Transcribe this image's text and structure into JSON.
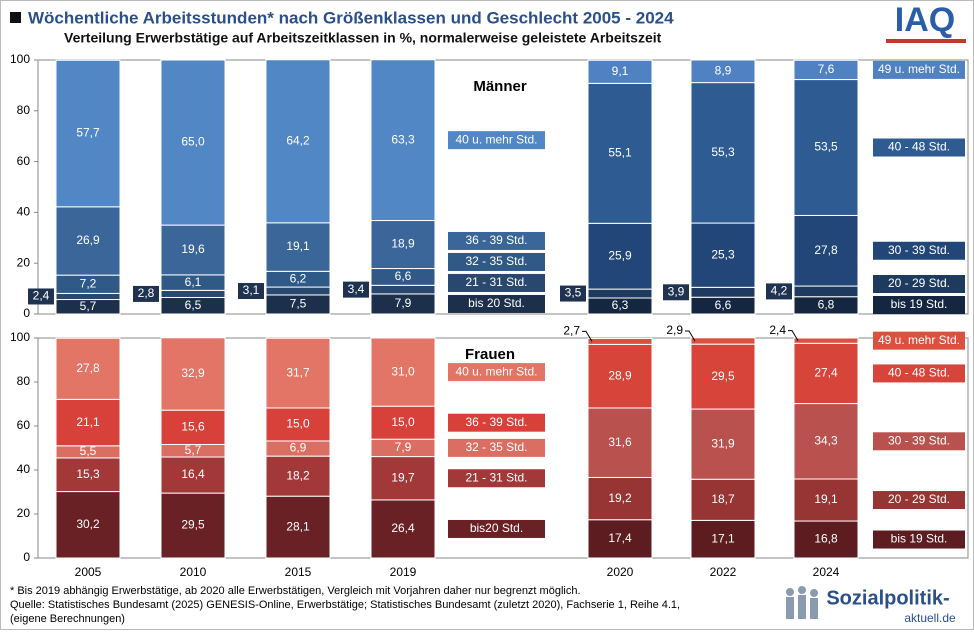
{
  "chart_data": {
    "type": "stacked_bar",
    "title": "Wöchentliche Arbeitsstunden* nach Größenklassen und Geschlecht 2005 - 2024",
    "subtitle": "Verteilung Erwerbstätige auf Arbeitszeitklassen in %, normalerweise geleistete Arbeitszeit",
    "categories": [
      "2005",
      "2010",
      "2015",
      "2019",
      "2020",
      "2022",
      "2024"
    ],
    "panels": [
      {
        "label": "Männer",
        "ylim": [
          0,
          100
        ],
        "yticks": [
          0,
          20,
          40,
          60,
          80,
          100
        ],
        "series": [
          {
            "name": "bis 20 Std.",
            "color": "#1c2f4b",
            "values": [
              5.7,
              6.5,
              7.5,
              7.9,
              null,
              null,
              null
            ],
            "value_labels": [
              "5,7",
              "6,5",
              "7,5",
              "7,9",
              null,
              null,
              null
            ]
          },
          {
            "name": "21 - 31 Std.",
            "color": "#29486f",
            "values": [
              2.4,
              2.8,
              3.1,
              3.4,
              null,
              null,
              null
            ],
            "value_labels": [
              "2,4",
              "2,8",
              "3,1",
              "3,4",
              null,
              null,
              null
            ]
          },
          {
            "name": "32 - 35 Std.",
            "color": "#2f5987",
            "values": [
              7.2,
              6.1,
              6.2,
              6.6,
              null,
              null,
              null
            ],
            "value_labels": [
              "7,2",
              "6,1",
              "6,2",
              "6,6",
              null,
              null,
              null
            ]
          },
          {
            "name": "36 - 39 Std.",
            "color": "#3b6699",
            "values": [
              26.9,
              19.6,
              19.1,
              18.9,
              null,
              null,
              null
            ],
            "value_labels": [
              "26,9",
              "19,6",
              "19,1",
              "18,9",
              null,
              null,
              null
            ]
          },
          {
            "name": "40 u. mehr Std.",
            "color": "#5287c6",
            "values": [
              57.7,
              65.0,
              64.2,
              63.3,
              null,
              null,
              null
            ],
            "value_labels": [
              "57,7",
              "65,0",
              "64,2",
              "63,3",
              null,
              null,
              null
            ]
          },
          {
            "name": "bis 19 Std.",
            "color": "#142640",
            "values": [
              null,
              null,
              null,
              null,
              6.3,
              6.6,
              6.8
            ],
            "value_labels": [
              null,
              null,
              null,
              null,
              "6,3",
              "6,6",
              "6,8"
            ]
          },
          {
            "name": "20 - 29 Std.",
            "color": "#1e3a5e",
            "values": [
              null,
              null,
              null,
              null,
              3.5,
              3.9,
              4.2
            ],
            "value_labels": [
              null,
              null,
              null,
              null,
              "3,5",
              "3,9",
              "4,2"
            ]
          },
          {
            "name": "30 - 39 Std.",
            "color": "#234678",
            "values": [
              null,
              null,
              null,
              null,
              25.9,
              25.3,
              27.8
            ],
            "value_labels": [
              null,
              null,
              null,
              null,
              "25,9",
              "25,3",
              "27,8"
            ]
          },
          {
            "name": "40 - 48 Std.",
            "color": "#2d5b92",
            "values": [
              null,
              null,
              null,
              null,
              55.1,
              55.3,
              53.5
            ],
            "value_labels": [
              null,
              null,
              null,
              null,
              "55,1",
              "55,3",
              "53,5"
            ]
          },
          {
            "name": "49 u. mehr Std.",
            "color": "#4f81c3",
            "values": [
              null,
              null,
              null,
              null,
              9.1,
              8.9,
              7.6
            ],
            "value_labels": [
              null,
              null,
              null,
              null,
              "9,1",
              "8,9",
              "7,6"
            ]
          }
        ]
      },
      {
        "label": "Frauen",
        "ylim": [
          0,
          100
        ],
        "yticks": [
          0,
          20,
          40,
          60,
          80,
          100
        ],
        "series": [
          {
            "name": "bis20 Std.",
            "color": "#6a2126",
            "values": [
              30.2,
              29.5,
              28.1,
              26.4,
              null,
              null,
              null
            ],
            "value_labels": [
              "30,2",
              "29,5",
              "28,1",
              "26,4",
              null,
              null,
              null
            ]
          },
          {
            "name": "21 - 31 Std.",
            "color": "#a23838",
            "values": [
              15.3,
              16.4,
              18.2,
              19.7,
              null,
              null,
              null
            ],
            "value_labels": [
              "15,3",
              "16,4",
              "18,2",
              "19,7",
              null,
              null,
              null
            ]
          },
          {
            "name": "32 - 35 Std.",
            "color": "#db6e63",
            "values": [
              5.5,
              5.7,
              6.9,
              7.9,
              null,
              null,
              null
            ],
            "value_labels": [
              "5,5",
              "5,7",
              "6,9",
              "7,9",
              null,
              null,
              null
            ]
          },
          {
            "name": "36 - 39 Std.",
            "color": "#d8413a",
            "values": [
              21.1,
              15.6,
              15.0,
              15.0,
              null,
              null,
              null
            ],
            "value_labels": [
              "21,1",
              "15,6",
              "15,0",
              "15,0",
              null,
              null,
              null
            ]
          },
          {
            "name": "40 u. mehr Std.",
            "color": "#e27565",
            "values": [
              27.8,
              32.9,
              31.7,
              31.0,
              null,
              null,
              null
            ],
            "value_labels": [
              "27,8",
              "32,9",
              "31,7",
              "31,0",
              null,
              null,
              null
            ]
          },
          {
            "name": "bis 19 Std.",
            "color": "#5c1c20",
            "values": [
              null,
              null,
              null,
              null,
              17.4,
              17.1,
              16.8
            ],
            "value_labels": [
              null,
              null,
              null,
              null,
              "17,4",
              "17,1",
              "16,8"
            ]
          },
          {
            "name": "20 - 29 Std.",
            "color": "#973434",
            "values": [
              null,
              null,
              null,
              null,
              19.2,
              18.7,
              19.1
            ],
            "value_labels": [
              null,
              null,
              null,
              null,
              "19,2",
              "18,7",
              "19,1"
            ]
          },
          {
            "name": "30 - 39 Std.",
            "color": "#b9514e",
            "values": [
              null,
              null,
              null,
              null,
              31.6,
              31.9,
              34.3
            ],
            "value_labels": [
              null,
              null,
              null,
              null,
              "31,6",
              "31,9",
              "34,3"
            ]
          },
          {
            "name": "40 - 48 Std.",
            "color": "#d7443a",
            "values": [
              null,
              null,
              null,
              null,
              28.9,
              29.5,
              27.4
            ],
            "value_labels": [
              null,
              null,
              null,
              null,
              "28,9",
              "29,5",
              "27,4"
            ]
          },
          {
            "name": "49 u. mehr Std.",
            "color": "#dc5040",
            "values": [
              null,
              null,
              null,
              null,
              2.7,
              2.9,
              2.4
            ],
            "value_labels": [
              null,
              null,
              null,
              null,
              "2,7",
              "2,9",
              "2,4"
            ]
          }
        ]
      }
    ]
  },
  "logo": "IAQ",
  "footer": {
    "note": "* Bis 2019 abhängig Erwerbstätige, ab 2020 alle Erwerbstätigen, Vergleich mit Vorjahren daher nur begrenzt möglich.",
    "source": "Quelle: Statistisches Bundesamt (2025) GENESIS-Online, Erwerbstätige; Statistisches Bundesamt (zuletzt 2020), Fachserie 1, Reihe 4.1,",
    "source2": "(eigene Berechnungen)",
    "brand": "Sozialpolitik-",
    "brand2": "aktuell.de"
  }
}
